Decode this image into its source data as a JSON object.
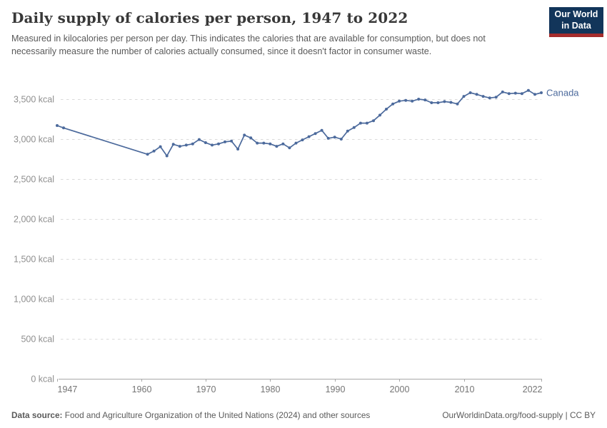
{
  "header": {
    "title": "Daily supply of calories per person, 1947 to 2022",
    "subtitle": "Measured in kilocalories per person per day. This indicates the calories that are available for consumption, but does not necessarily measure the number of calories actually consumed, since it doesn't factor in consumer waste.",
    "logo": {
      "line1": "Our World",
      "line2": "in Data"
    }
  },
  "chart_data": {
    "type": "line",
    "title": "Daily supply of calories per person, 1947 to 2022",
    "xlabel": "",
    "ylabel": "",
    "xlim": [
      1947,
      2022
    ],
    "ylim": [
      0,
      3500
    ],
    "grid": "horizontal-dashed",
    "legend": "series-end-label",
    "unit": "kcal",
    "colors": {
      "line": "#4C6A9C",
      "grid": "#dadada",
      "axis": "#a8a8a8"
    },
    "x_ticks": [
      {
        "value": 1947,
        "label": "1947",
        "anchor": "start"
      },
      {
        "value": 1960,
        "label": "1960",
        "anchor": "middle"
      },
      {
        "value": 1970,
        "label": "1970",
        "anchor": "middle"
      },
      {
        "value": 1980,
        "label": "1980",
        "anchor": "middle"
      },
      {
        "value": 1990,
        "label": "1990",
        "anchor": "middle"
      },
      {
        "value": 2000,
        "label": "2000",
        "anchor": "middle"
      },
      {
        "value": 2010,
        "label": "2010",
        "anchor": "middle"
      },
      {
        "value": 2022,
        "label": "2022",
        "anchor": "end"
      }
    ],
    "y_ticks": [
      {
        "value": 0,
        "label": "0 kcal"
      },
      {
        "value": 500,
        "label": "500 kcal"
      },
      {
        "value": 1000,
        "label": "1,000 kcal"
      },
      {
        "value": 1500,
        "label": "1,500 kcal"
      },
      {
        "value": 2000,
        "label": "2,000 kcal"
      },
      {
        "value": 2500,
        "label": "2,500 kcal"
      },
      {
        "value": 3000,
        "label": "3,000 kcal"
      },
      {
        "value": 3500,
        "label": "3,500 kcal"
      }
    ],
    "series": [
      {
        "name": "Canada",
        "color": "#4C6A9C",
        "points": [
          [
            1947,
            3170
          ],
          [
            1948,
            3140
          ],
          [
            1961,
            2810
          ],
          [
            1962,
            2850
          ],
          [
            1963,
            2905
          ],
          [
            1964,
            2790
          ],
          [
            1965,
            2935
          ],
          [
            1966,
            2910
          ],
          [
            1967,
            2925
          ],
          [
            1968,
            2940
          ],
          [
            1969,
            2995
          ],
          [
            1970,
            2955
          ],
          [
            1971,
            2925
          ],
          [
            1972,
            2940
          ],
          [
            1973,
            2965
          ],
          [
            1974,
            2975
          ],
          [
            1975,
            2875
          ],
          [
            1976,
            3050
          ],
          [
            1977,
            3015
          ],
          [
            1978,
            2950
          ],
          [
            1979,
            2950
          ],
          [
            1980,
            2940
          ],
          [
            1981,
            2910
          ],
          [
            1982,
            2940
          ],
          [
            1983,
            2890
          ],
          [
            1984,
            2950
          ],
          [
            1985,
            2990
          ],
          [
            1986,
            3030
          ],
          [
            1987,
            3070
          ],
          [
            1988,
            3110
          ],
          [
            1989,
            3010
          ],
          [
            1990,
            3025
          ],
          [
            1991,
            3000
          ],
          [
            1992,
            3100
          ],
          [
            1993,
            3145
          ],
          [
            1994,
            3200
          ],
          [
            1995,
            3200
          ],
          [
            1996,
            3230
          ],
          [
            1997,
            3300
          ],
          [
            1998,
            3375
          ],
          [
            1999,
            3440
          ],
          [
            2000,
            3475
          ],
          [
            2001,
            3485
          ],
          [
            2002,
            3475
          ],
          [
            2003,
            3500
          ],
          [
            2004,
            3490
          ],
          [
            2005,
            3455
          ],
          [
            2006,
            3455
          ],
          [
            2007,
            3470
          ],
          [
            2008,
            3460
          ],
          [
            2009,
            3440
          ],
          [
            2010,
            3535
          ],
          [
            2011,
            3580
          ],
          [
            2012,
            3560
          ],
          [
            2013,
            3535
          ],
          [
            2014,
            3515
          ],
          [
            2015,
            3525
          ],
          [
            2016,
            3590
          ],
          [
            2017,
            3570
          ],
          [
            2018,
            3575
          ],
          [
            2019,
            3570
          ],
          [
            2020,
            3610
          ],
          [
            2021,
            3560
          ],
          [
            2022,
            3580
          ]
        ]
      }
    ]
  },
  "footer": {
    "datasource_label": "Data source:",
    "datasource_text": " Food and Agriculture Organization of the United Nations (2024) and other sources",
    "link_text": "OurWorldinData.org/food-supply | CC BY"
  }
}
